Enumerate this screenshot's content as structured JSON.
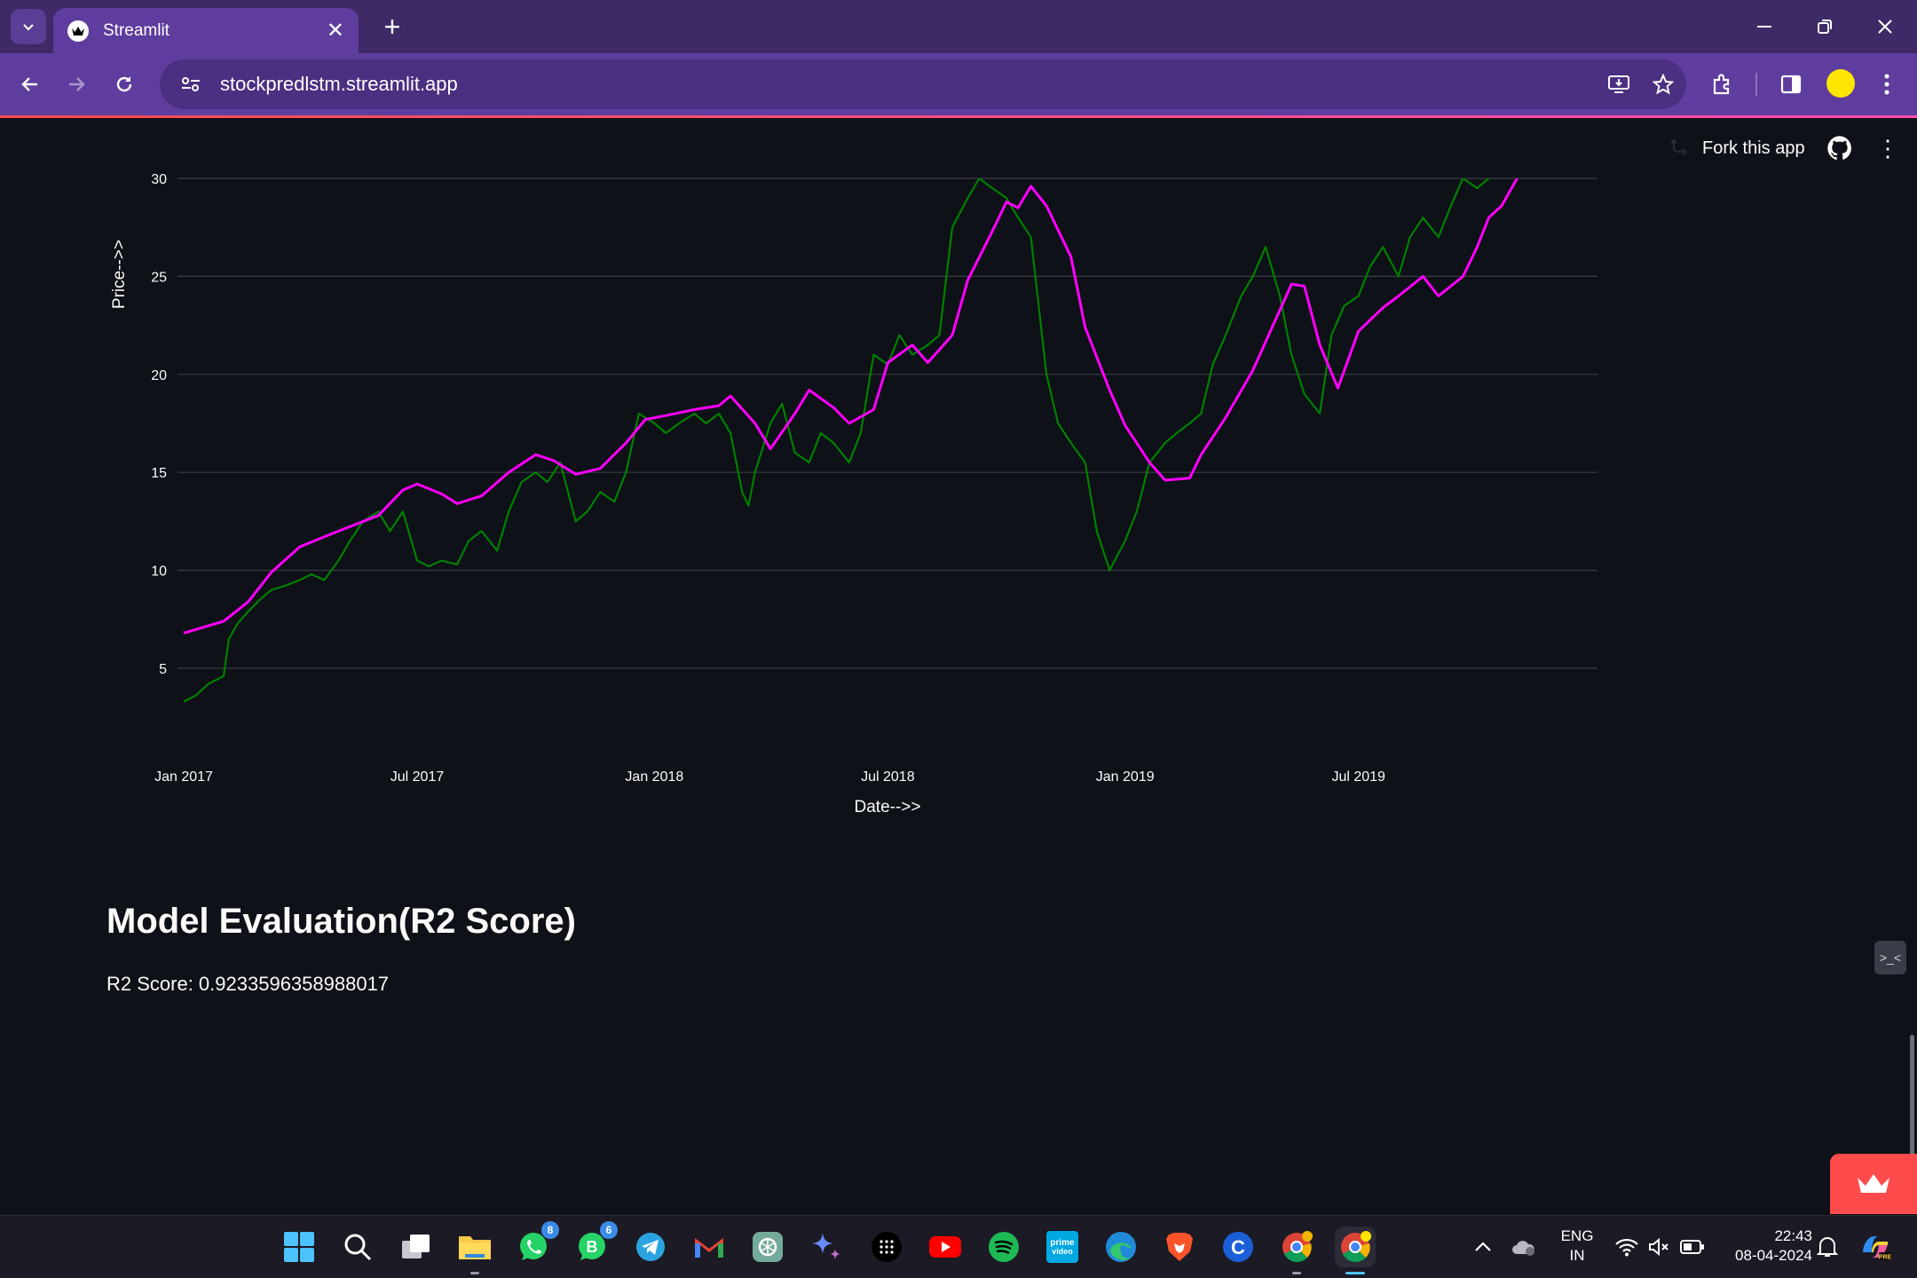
{
  "browser": {
    "tab_title": "Streamlit",
    "url": "stockpredlstm.streamlit.app"
  },
  "app_header": {
    "fork_label": "Fork this app"
  },
  "chart_data": {
    "type": "line",
    "xlabel": "Date-->>",
    "ylabel": "Price-->>",
    "x_tick_labels": [
      "Jan 2017",
      "Jul 2017",
      "Jan 2018",
      "Jul 2018",
      "Jan 2019",
      "Jul 2019"
    ],
    "y_tick_labels": [
      "5",
      "10",
      "15",
      "20",
      "25",
      "30"
    ],
    "x_range": [
      "2017-01-01",
      "2019-12-31"
    ],
    "ylim": [
      0,
      30
    ],
    "grid": "horizontal",
    "series": [
      {
        "color": "#008000",
        "points": [
          [
            "2017-01-01",
            3.3
          ],
          [
            "2017-01-10",
            3.6
          ],
          [
            "2017-01-20",
            4.2
          ],
          [
            "2017-02-01",
            4.6
          ],
          [
            "2017-02-05",
            6.5
          ],
          [
            "2017-02-12",
            7.3
          ],
          [
            "2017-02-20",
            7.9
          ],
          [
            "2017-03-01",
            8.5
          ],
          [
            "2017-03-10",
            9.0
          ],
          [
            "2017-03-20",
            9.2
          ],
          [
            "2017-04-01",
            9.5
          ],
          [
            "2017-04-10",
            9.8
          ],
          [
            "2017-04-20",
            9.5
          ],
          [
            "2017-05-01",
            10.5
          ],
          [
            "2017-05-10",
            11.5
          ],
          [
            "2017-05-20",
            12.5
          ],
          [
            "2017-06-01",
            13.0
          ],
          [
            "2017-06-10",
            12.0
          ],
          [
            "2017-06-20",
            13.0
          ],
          [
            "2017-07-01",
            10.5
          ],
          [
            "2017-07-10",
            10.2
          ],
          [
            "2017-07-20",
            10.5
          ],
          [
            "2017-08-01",
            10.3
          ],
          [
            "2017-08-10",
            11.5
          ],
          [
            "2017-08-20",
            12.0
          ],
          [
            "2017-09-01",
            11.0
          ],
          [
            "2017-09-10",
            13.0
          ],
          [
            "2017-09-20",
            14.5
          ],
          [
            "2017-10-01",
            15.0
          ],
          [
            "2017-10-10",
            14.5
          ],
          [
            "2017-10-20",
            15.5
          ],
          [
            "2017-11-01",
            12.5
          ],
          [
            "2017-11-10",
            13.0
          ],
          [
            "2017-11-20",
            14.0
          ],
          [
            "2017-12-01",
            13.5
          ],
          [
            "2017-12-10",
            15.0
          ],
          [
            "2017-12-20",
            18.0
          ],
          [
            "2018-01-01",
            17.5
          ],
          [
            "2018-01-10",
            17.0
          ],
          [
            "2018-01-20",
            17.5
          ],
          [
            "2018-02-01",
            18.0
          ],
          [
            "2018-02-10",
            17.5
          ],
          [
            "2018-02-20",
            18.0
          ],
          [
            "2018-03-01",
            17.0
          ],
          [
            "2018-03-10",
            14.0
          ],
          [
            "2018-03-15",
            13.3
          ],
          [
            "2018-03-20",
            15.0
          ],
          [
            "2018-04-01",
            17.5
          ],
          [
            "2018-04-10",
            18.5
          ],
          [
            "2018-04-20",
            16.0
          ],
          [
            "2018-05-01",
            15.5
          ],
          [
            "2018-05-10",
            17.0
          ],
          [
            "2018-05-20",
            16.5
          ],
          [
            "2018-06-01",
            15.5
          ],
          [
            "2018-06-10",
            17.0
          ],
          [
            "2018-06-20",
            21.0
          ],
          [
            "2018-07-01",
            20.5
          ],
          [
            "2018-07-10",
            22.0
          ],
          [
            "2018-07-20",
            21.0
          ],
          [
            "2018-08-01",
            21.5
          ],
          [
            "2018-08-10",
            22.0
          ],
          [
            "2018-08-20",
            27.5
          ],
          [
            "2018-09-01",
            29.0
          ],
          [
            "2018-09-10",
            30.0
          ],
          [
            "2018-09-20",
            29.5
          ],
          [
            "2018-10-01",
            29.0
          ],
          [
            "2018-10-10",
            28.0
          ],
          [
            "2018-10-20",
            27.0
          ],
          [
            "2018-11-01",
            20.0
          ],
          [
            "2018-11-10",
            17.5
          ],
          [
            "2018-11-20",
            16.5
          ],
          [
            "2018-12-01",
            15.5
          ],
          [
            "2018-12-10",
            12.0
          ],
          [
            "2018-12-20",
            10.0
          ],
          [
            "2019-01-01",
            11.5
          ],
          [
            "2019-01-10",
            13.0
          ],
          [
            "2019-01-20",
            15.5
          ],
          [
            "2019-02-01",
            16.5
          ],
          [
            "2019-02-10",
            17.0
          ],
          [
            "2019-02-20",
            17.5
          ],
          [
            "2019-03-01",
            18.0
          ],
          [
            "2019-03-10",
            20.5
          ],
          [
            "2019-03-20",
            22.0
          ],
          [
            "2019-04-01",
            24.0
          ],
          [
            "2019-04-10",
            25.0
          ],
          [
            "2019-04-20",
            26.5
          ],
          [
            "2019-05-01",
            24.0
          ],
          [
            "2019-05-10",
            21.0
          ],
          [
            "2019-05-20",
            19.0
          ],
          [
            "2019-06-01",
            18.0
          ],
          [
            "2019-06-10",
            22.0
          ],
          [
            "2019-06-20",
            23.5
          ],
          [
            "2019-07-01",
            24.0
          ],
          [
            "2019-07-10",
            25.5
          ],
          [
            "2019-07-20",
            26.5
          ],
          [
            "2019-08-01",
            25.0
          ],
          [
            "2019-08-10",
            27.0
          ],
          [
            "2019-08-20",
            28.0
          ],
          [
            "2019-09-01",
            27.0
          ],
          [
            "2019-09-10",
            28.5
          ],
          [
            "2019-09-20",
            30.0
          ],
          [
            "2019-10-01",
            29.5
          ],
          [
            "2019-10-10",
            30.0
          ]
        ]
      },
      {
        "color": "#ff00ff",
        "points": [
          [
            "2017-01-01",
            6.8
          ],
          [
            "2017-02-01",
            7.4
          ],
          [
            "2017-02-20",
            8.4
          ],
          [
            "2017-03-10",
            9.9
          ],
          [
            "2017-04-01",
            11.2
          ],
          [
            "2017-05-01",
            12.0
          ],
          [
            "2017-06-01",
            12.8
          ],
          [
            "2017-06-20",
            14.1
          ],
          [
            "2017-07-01",
            14.4
          ],
          [
            "2017-07-20",
            13.9
          ],
          [
            "2017-08-01",
            13.4
          ],
          [
            "2017-08-20",
            13.8
          ],
          [
            "2017-09-10",
            15.0
          ],
          [
            "2017-10-01",
            15.9
          ],
          [
            "2017-10-15",
            15.6
          ],
          [
            "2017-11-01",
            14.9
          ],
          [
            "2017-11-20",
            15.2
          ],
          [
            "2017-12-10",
            16.5
          ],
          [
            "2017-12-25",
            17.7
          ],
          [
            "2018-01-10",
            17.9
          ],
          [
            "2018-02-01",
            18.2
          ],
          [
            "2018-02-20",
            18.4
          ],
          [
            "2018-03-01",
            18.9
          ],
          [
            "2018-03-20",
            17.5
          ],
          [
            "2018-04-01",
            16.2
          ],
          [
            "2018-04-20",
            18.0
          ],
          [
            "2018-05-01",
            19.2
          ],
          [
            "2018-05-20",
            18.3
          ],
          [
            "2018-06-01",
            17.5
          ],
          [
            "2018-06-20",
            18.2
          ],
          [
            "2018-07-01",
            20.6
          ],
          [
            "2018-07-20",
            21.5
          ],
          [
            "2018-08-01",
            20.6
          ],
          [
            "2018-08-20",
            22.0
          ],
          [
            "2018-09-01",
            24.8
          ],
          [
            "2018-09-20",
            27.3
          ],
          [
            "2018-10-01",
            28.8
          ],
          [
            "2018-10-10",
            28.5
          ],
          [
            "2018-10-20",
            29.6
          ],
          [
            "2018-11-01",
            28.6
          ],
          [
            "2018-11-20",
            26.0
          ],
          [
            "2018-12-01",
            22.4
          ],
          [
            "2018-12-20",
            19.2
          ],
          [
            "2019-01-01",
            17.4
          ],
          [
            "2019-01-20",
            15.5
          ],
          [
            "2019-02-01",
            14.6
          ],
          [
            "2019-02-20",
            14.7
          ],
          [
            "2019-03-01",
            15.9
          ],
          [
            "2019-03-20",
            17.8
          ],
          [
            "2019-04-10",
            20.2
          ],
          [
            "2019-04-25",
            22.4
          ],
          [
            "2019-05-10",
            24.6
          ],
          [
            "2019-05-20",
            24.5
          ],
          [
            "2019-06-01",
            21.5
          ],
          [
            "2019-06-15",
            19.3
          ],
          [
            "2019-07-01",
            22.2
          ],
          [
            "2019-07-20",
            23.4
          ],
          [
            "2019-08-01",
            24.0
          ],
          [
            "2019-08-20",
            25.0
          ],
          [
            "2019-09-01",
            24.0
          ],
          [
            "2019-09-20",
            25.0
          ],
          [
            "2019-10-01",
            26.5
          ],
          [
            "2019-10-10",
            28.0
          ],
          [
            "2019-10-20",
            28.6
          ],
          [
            "2019-11-01",
            30.0
          ]
        ]
      }
    ]
  },
  "content": {
    "heading": "Model Evaluation(R2 Score)",
    "r2_text": "R2 Score: 0.9233596358988017"
  },
  "taskbar": {
    "whatsapp_badge": "8",
    "whatsapp_business_badge": "6",
    "lang_line1": "ENG",
    "lang_line2": "IN",
    "time": "22:43",
    "date": "08-04-2024",
    "colors": {
      "whatsapp": "#25d366",
      "telegram": "#2aa3e0",
      "gmail": "#ea4335",
      "youtube": "#ff0000",
      "spotify": "#1db954",
      "prime": "#00a8e1",
      "edge": "#1f8bd8",
      "brave": "#fb542b"
    }
  }
}
